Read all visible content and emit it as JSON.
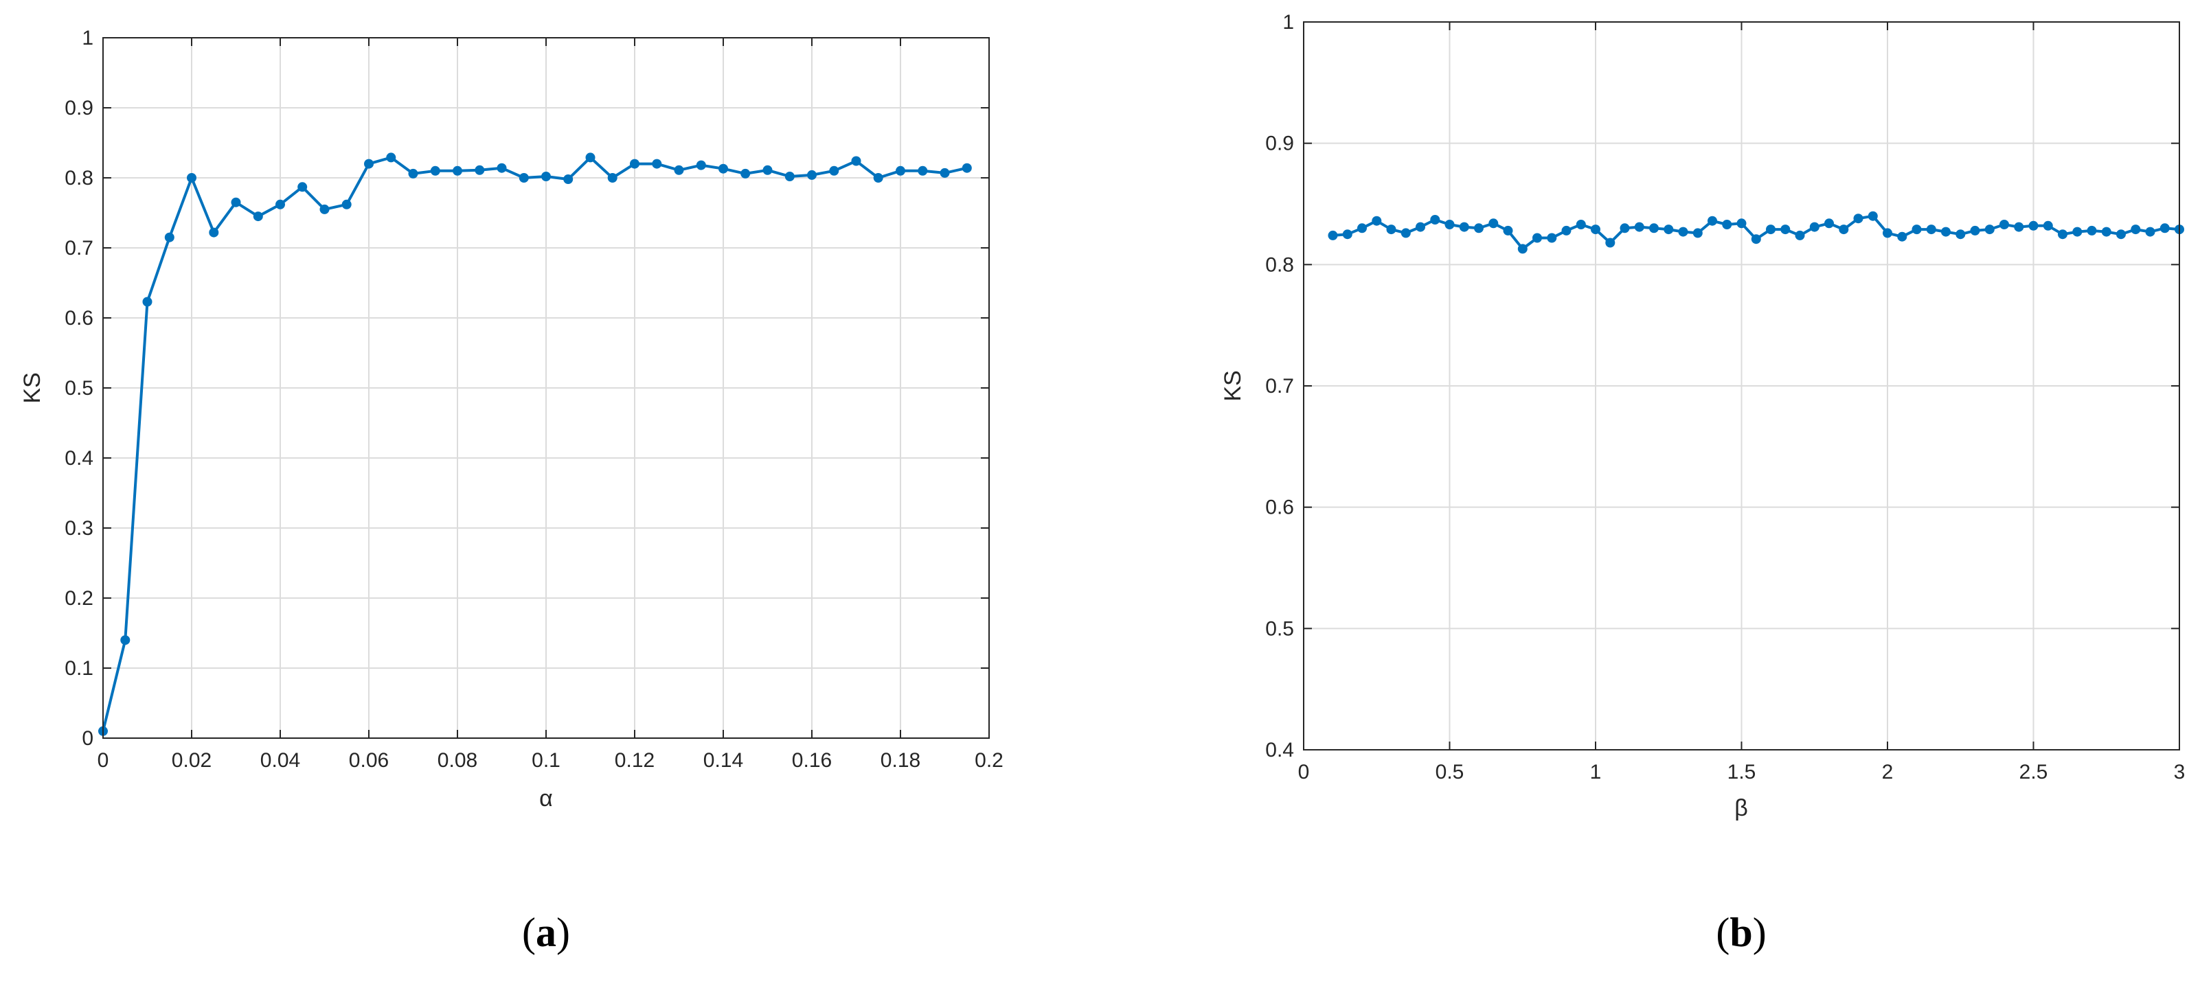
{
  "colors": {
    "series": "#0072BD",
    "axis": "#262626",
    "grid": "#DCDCDC"
  },
  "chart_data": [
    {
      "type": "line",
      "panel_caption": {
        "open": "(",
        "letter": "a",
        "close": ")"
      },
      "title": "",
      "xlabel": "α",
      "ylabel": "KS",
      "xlim": [
        0,
        0.2
      ],
      "ylim": [
        0,
        1
      ],
      "xticks": [
        0,
        0.02,
        0.04,
        0.06,
        0.08,
        0.1,
        0.12,
        0.14,
        0.16,
        0.18,
        0.2
      ],
      "xtick_labels": [
        "0",
        "0.02",
        "0.04",
        "0.06",
        "0.08",
        "0.1",
        "0.12",
        "0.14",
        "0.16",
        "0.18",
        "0.2"
      ],
      "yticks": [
        0,
        0.1,
        0.2,
        0.3,
        0.4,
        0.5,
        0.6,
        0.7,
        0.8,
        0.9,
        1
      ],
      "ytick_labels": [
        "0",
        "0.1",
        "0.2",
        "0.3",
        "0.4",
        "0.5",
        "0.6",
        "0.7",
        "0.8",
        "0.9",
        "1"
      ],
      "grid": true,
      "series": [
        {
          "x": [
            0,
            0.005,
            0.01,
            0.015,
            0.02,
            0.025,
            0.03,
            0.035,
            0.04,
            0.045,
            0.05,
            0.055,
            0.06,
            0.065,
            0.07,
            0.075,
            0.08,
            0.085,
            0.09,
            0.095,
            0.1,
            0.105,
            0.11,
            0.115,
            0.12,
            0.125,
            0.13,
            0.135,
            0.14,
            0.145,
            0.15,
            0.155,
            0.16,
            0.165,
            0.17,
            0.175,
            0.18,
            0.185,
            0.19,
            0.195
          ],
          "y": [
            0.01,
            0.14,
            0.623,
            0.715,
            0.8,
            0.722,
            0.765,
            0.745,
            0.762,
            0.787,
            0.755,
            0.762,
            0.82,
            0.829,
            0.806,
            0.81,
            0.81,
            0.811,
            0.814,
            0.8,
            0.802,
            0.798,
            0.829,
            0.8,
            0.82,
            0.82,
            0.811,
            0.818,
            0.813,
            0.806,
            0.811,
            0.802,
            0.804,
            0.81,
            0.824,
            0.8,
            0.81,
            0.81,
            0.807,
            0.814
          ]
        }
      ]
    },
    {
      "type": "line",
      "panel_caption": {
        "open": "(",
        "letter": "b",
        "close": ")"
      },
      "title": "",
      "xlabel": "β",
      "ylabel": "KS",
      "xlim": [
        0,
        3
      ],
      "ylim": [
        0.4,
        1
      ],
      "xticks": [
        0,
        0.5,
        1,
        1.5,
        2,
        2.5,
        3
      ],
      "xtick_labels": [
        "0",
        "0.5",
        "1",
        "1.5",
        "2",
        "2.5",
        "3"
      ],
      "yticks": [
        0.4,
        0.5,
        0.6,
        0.7,
        0.8,
        0.9,
        1
      ],
      "ytick_labels": [
        "0.4",
        "0.5",
        "0.6",
        "0.7",
        "0.8",
        "0.9",
        "1"
      ],
      "grid": true,
      "series": [
        {
          "x": [
            0.1,
            0.15,
            0.2,
            0.25,
            0.3,
            0.35,
            0.4,
            0.45,
            0.5,
            0.55,
            0.6,
            0.65,
            0.7,
            0.75,
            0.8,
            0.85,
            0.9,
            0.95,
            1.0,
            1.05,
            1.1,
            1.15,
            1.2,
            1.25,
            1.3,
            1.35,
            1.4,
            1.45,
            1.5,
            1.55,
            1.6,
            1.65,
            1.7,
            1.75,
            1.8,
            1.85,
            1.9,
            1.95,
            2.0,
            2.05,
            2.1,
            2.15,
            2.2,
            2.25,
            2.3,
            2.35,
            2.4,
            2.45,
            2.5,
            2.55,
            2.6,
            2.65,
            2.7,
            2.75,
            2.8,
            2.85,
            2.9,
            2.95,
            3.0
          ],
          "y": [
            0.824,
            0.825,
            0.83,
            0.836,
            0.829,
            0.826,
            0.831,
            0.837,
            0.833,
            0.831,
            0.83,
            0.834,
            0.828,
            0.813,
            0.822,
            0.822,
            0.828,
            0.833,
            0.829,
            0.818,
            0.83,
            0.831,
            0.83,
            0.829,
            0.827,
            0.826,
            0.836,
            0.833,
            0.834,
            0.821,
            0.829,
            0.829,
            0.824,
            0.831,
            0.834,
            0.829,
            0.838,
            0.84,
            0.826,
            0.823,
            0.829,
            0.829,
            0.827,
            0.825,
            0.828,
            0.829,
            0.833,
            0.831,
            0.832,
            0.832,
            0.825,
            0.827,
            0.828,
            0.827,
            0.825,
            0.829,
            0.827,
            0.83,
            0.829
          ]
        }
      ]
    }
  ]
}
